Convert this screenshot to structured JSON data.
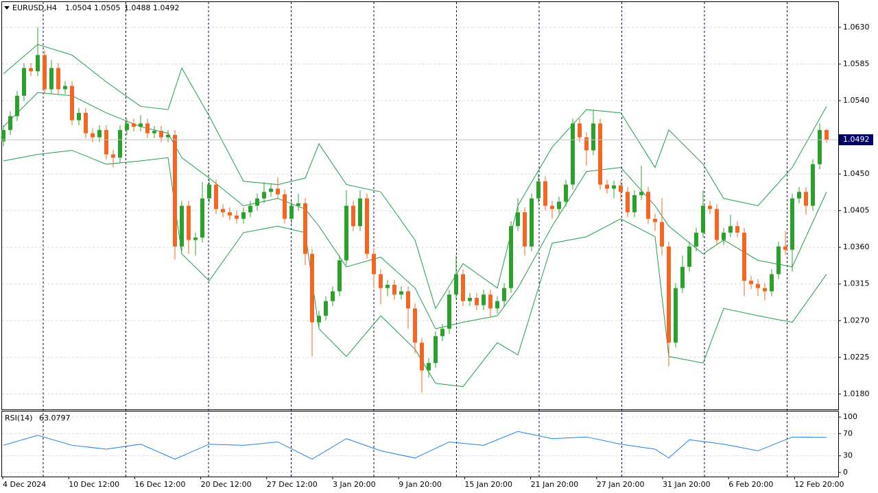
{
  "chart_data": {
    "type": "candlestick",
    "title": "EURUSD,H4",
    "up_color": "#2ca02c",
    "down_color": "#f26522",
    "grid": true,
    "ylim": [
      1.0161,
      1.0661
    ],
    "yticks": [
      {
        "value": 1.018,
        "label": "1.0180"
      },
      1.0225,
      {
        "value": 1.027,
        "label": "1.0270"
      },
      1.0315,
      {
        "value": 1.036,
        "label": "1.0360"
      },
      1.0405,
      {
        "value": 1.045,
        "label": "1.0450"
      },
      {
        "value": 1.054,
        "label": "1.0540"
      },
      1.0585,
      {
        "value": 1.063,
        "label": "1.0630"
      }
    ],
    "xlabels": [
      "4 Dec 2024",
      "10 Dec 12:00",
      "16 Dec 12:00",
      "20 Dec 12:00",
      "27 Dec 12:00",
      "3 Jan 20:00",
      "9 Jan 20:00",
      "15 Jan 20:00",
      "21 Jan 20:00",
      "27 Jan 20:00",
      "31 Jan 20:00",
      "6 Feb 20:00",
      "12 Feb 20:00"
    ],
    "candles": [
      [
        1.049,
        1.051,
        1.0484,
        1.0504
      ],
      [
        1.0504,
        1.0527,
        1.0498,
        1.0521
      ],
      [
        1.0521,
        1.0552,
        1.0515,
        1.0546
      ],
      [
        1.0546,
        1.0586,
        1.054,
        1.058
      ],
      [
        1.058,
        1.0586,
        1.057,
        1.0576
      ],
      [
        1.0576,
        1.063,
        1.057,
        1.0596
      ],
      [
        1.0596,
        1.0602,
        1.0548,
        1.0554
      ],
      [
        1.0554,
        1.059,
        1.0548,
        1.058
      ],
      [
        1.058,
        1.0586,
        1.0548,
        1.0554
      ],
      [
        1.0554,
        1.0564,
        1.0548,
        1.0558
      ],
      [
        1.0558,
        1.0564,
        1.051,
        1.0516
      ],
      [
        1.0516,
        1.0531,
        1.051,
        1.0525
      ],
      [
        1.0525,
        1.0531,
        1.0494,
        1.05
      ],
      [
        1.05,
        1.0506,
        1.0489,
        1.0495
      ],
      [
        1.0495,
        1.051,
        1.0489,
        1.0504
      ],
      [
        1.0504,
        1.051,
        1.0468,
        1.0474
      ],
      [
        1.0474,
        1.048,
        1.0458,
        1.047
      ],
      [
        1.047,
        1.051,
        1.0464,
        1.0504
      ],
      [
        1.0504,
        1.0518,
        1.0498,
        1.0512
      ],
      [
        1.0512,
        1.0518,
        1.0502,
        1.0508
      ],
      [
        1.0508,
        1.0522,
        1.0502,
        1.0512
      ],
      [
        1.0512,
        1.0518,
        1.0494,
        1.05
      ],
      [
        1.05,
        1.0509,
        1.0494,
        1.0503
      ],
      [
        1.0503,
        1.0509,
        1.0489,
        1.0495
      ],
      [
        1.0495,
        1.0504,
        1.0489,
        1.0498
      ],
      [
        1.0498,
        1.0504,
        1.0345,
        1.0361
      ],
      [
        1.0361,
        1.0417,
        1.0355,
        1.0411
      ],
      [
        1.0411,
        1.0417,
        1.0352,
        1.0369
      ],
      [
        1.0369,
        1.0378,
        1.035,
        1.0372
      ],
      [
        1.0372,
        1.044,
        1.0366,
        1.042
      ],
      [
        1.042,
        1.0443,
        1.0414,
        1.0437
      ],
      [
        1.0437,
        1.0443,
        1.0401,
        1.0407
      ],
      [
        1.0407,
        1.0413,
        1.0397,
        1.0403
      ],
      [
        1.0403,
        1.0409,
        1.0393,
        1.0399
      ],
      [
        1.0399,
        1.0405,
        1.0389,
        1.0395
      ],
      [
        1.0395,
        1.0409,
        1.0389,
        1.0403
      ],
      [
        1.0403,
        1.0417,
        1.0397,
        1.0411
      ],
      [
        1.0411,
        1.0426,
        1.0405,
        1.042
      ],
      [
        1.042,
        1.044,
        1.0414,
        1.0428
      ],
      [
        1.0428,
        1.0438,
        1.0422,
        1.0432
      ],
      [
        1.0432,
        1.0446,
        1.0419,
        1.0425
      ],
      [
        1.0425,
        1.0431,
        1.0389,
        1.0395
      ],
      [
        1.0395,
        1.0417,
        1.0389,
        1.0411
      ],
      [
        1.0411,
        1.0426,
        1.0405,
        1.0414
      ],
      [
        1.0414,
        1.042,
        1.0338,
        1.0352
      ],
      [
        1.0352,
        1.0358,
        1.0226,
        1.0268
      ],
      [
        1.0268,
        1.0282,
        1.0262,
        1.0276
      ],
      [
        1.0276,
        1.03,
        1.027,
        1.0294
      ],
      [
        1.0294,
        1.0312,
        1.0288,
        1.0306
      ],
      [
        1.0306,
        1.035,
        1.03,
        1.0344
      ],
      [
        1.0344,
        1.043,
        1.0338,
        1.0411
      ],
      [
        1.0411,
        1.0417,
        1.038,
        1.0386
      ],
      [
        1.0386,
        1.043,
        1.038,
        1.042
      ],
      [
        1.042,
        1.0426,
        1.0346,
        1.0352
      ],
      [
        1.0352,
        1.0358,
        1.031,
        1.0327
      ],
      [
        1.0327,
        1.0333,
        1.029,
        1.031
      ],
      [
        1.031,
        1.032,
        1.03,
        1.0314
      ],
      [
        1.0314,
        1.032,
        1.0296,
        1.0302
      ],
      [
        1.0302,
        1.0312,
        1.0296,
        1.0306
      ],
      [
        1.0306,
        1.0312,
        1.026,
        1.0285
      ],
      [
        1.0285,
        1.0291,
        1.023,
        1.0243
      ],
      [
        1.0243,
        1.0249,
        1.0182,
        1.0209
      ],
      [
        1.0209,
        1.0224,
        1.02,
        1.0218
      ],
      [
        1.0218,
        1.0257,
        1.0212,
        1.0251
      ],
      [
        1.0251,
        1.0266,
        1.0245,
        1.026
      ],
      [
        1.026,
        1.0308,
        1.0254,
        1.0302
      ],
      [
        1.0302,
        1.035,
        1.0296,
        1.0327
      ],
      [
        1.0327,
        1.0333,
        1.0288,
        1.0294
      ],
      [
        1.0294,
        1.0304,
        1.0288,
        1.0298
      ],
      [
        1.0298,
        1.0304,
        1.0283,
        1.0289
      ],
      [
        1.0289,
        1.0308,
        1.0283,
        1.0302
      ],
      [
        1.0302,
        1.0308,
        1.0275,
        1.0285
      ],
      [
        1.0285,
        1.03,
        1.0279,
        1.0294
      ],
      [
        1.0294,
        1.0316,
        1.0288,
        1.031
      ],
      [
        1.031,
        1.0392,
        1.0304,
        1.0386
      ],
      [
        1.0386,
        1.042,
        1.038,
        1.0403
      ],
      [
        1.0403,
        1.0409,
        1.035,
        1.0361
      ],
      [
        1.0361,
        1.0426,
        1.0355,
        1.042
      ],
      [
        1.042,
        1.045,
        1.0414,
        1.0441
      ],
      [
        1.0441,
        1.0447,
        1.0405,
        1.0411
      ],
      [
        1.0411,
        1.0417,
        1.0395,
        1.0407
      ],
      [
        1.0407,
        1.0422,
        1.0401,
        1.0416
      ],
      [
        1.0416,
        1.0443,
        1.041,
        1.0437
      ],
      [
        1.0437,
        1.0518,
        1.0431,
        1.0512
      ],
      [
        1.0512,
        1.0518,
        1.0489,
        1.0495
      ],
      [
        1.0495,
        1.0501,
        1.046,
        1.0479
      ],
      [
        1.0479,
        1.0528,
        1.0473,
        1.0512
      ],
      [
        1.0512,
        1.0518,
        1.0431,
        1.0437
      ],
      [
        1.0437,
        1.0443,
        1.0426,
        1.0432
      ],
      [
        1.0432,
        1.0442,
        1.042,
        1.0436
      ],
      [
        1.0436,
        1.0442,
        1.0416,
        1.0428
      ],
      [
        1.0428,
        1.0434,
        1.0397,
        1.0403
      ],
      [
        1.0403,
        1.043,
        1.0397,
        1.0424
      ],
      [
        1.0424,
        1.046,
        1.0418,
        1.0428
      ],
      [
        1.0428,
        1.0434,
        1.0389,
        1.0395
      ],
      [
        1.0395,
        1.0401,
        1.038,
        1.0391
      ],
      [
        1.0391,
        1.042,
        1.035,
        1.0361
      ],
      [
        1.0361,
        1.0367,
        1.0214,
        1.0243
      ],
      [
        1.0243,
        1.0316,
        1.0237,
        1.031
      ],
      [
        1.031,
        1.035,
        1.0304,
        1.0336
      ],
      [
        1.0336,
        1.0367,
        1.033,
        1.0361
      ],
      [
        1.0361,
        1.0384,
        1.0355,
        1.0378
      ],
      [
        1.0378,
        1.043,
        1.0372,
        1.0411
      ],
      [
        1.0411,
        1.0417,
        1.0401,
        1.0407
      ],
      [
        1.0407,
        1.0413,
        1.0363,
        1.0369
      ],
      [
        1.0369,
        1.0384,
        1.0363,
        1.0378
      ],
      [
        1.0378,
        1.04,
        1.0372,
        1.0386
      ],
      [
        1.0386,
        1.0392,
        1.0372,
        1.0378
      ],
      [
        1.0378,
        1.0384,
        1.03,
        1.0319
      ],
      [
        1.0319,
        1.0325,
        1.0309,
        1.0315
      ],
      [
        1.0315,
        1.0321,
        1.03,
        1.031
      ],
      [
        1.031,
        1.0316,
        1.0295,
        1.0306
      ],
      [
        1.0306,
        1.0333,
        1.03,
        1.0327
      ],
      [
        1.0327,
        1.0367,
        1.0321,
        1.0361
      ],
      [
        1.0361,
        1.038,
        1.0351,
        1.0357
      ],
      [
        1.0357,
        1.0426,
        1.033,
        1.042
      ],
      [
        1.042,
        1.0434,
        1.0414,
        1.0428
      ],
      [
        1.0428,
        1.0434,
        1.04,
        1.0411
      ],
      [
        1.0411,
        1.0468,
        1.0405,
        1.0462
      ],
      [
        1.0462,
        1.0512,
        1.0456,
        1.0504
      ],
      [
        1.0504,
        1.0505,
        1.0488,
        1.0492
      ]
    ],
    "bands": {
      "color": "#1e9e4a",
      "x": [
        0,
        5,
        10,
        15,
        20,
        24,
        26,
        30,
        35,
        40,
        44,
        46,
        50,
        55,
        60,
        63,
        67,
        72,
        75,
        80,
        85,
        90,
        95,
        97,
        102,
        105,
        110,
        115,
        120
      ],
      "upper": [
        1.0573,
        1.0609,
        1.0596,
        1.0563,
        1.0533,
        1.0529,
        1.058,
        1.0521,
        1.0441,
        1.0437,
        1.0445,
        1.0487,
        1.0437,
        1.0428,
        1.0369,
        1.0285,
        1.034,
        1.031,
        1.0411,
        1.0483,
        1.0529,
        1.0525,
        1.0458,
        1.0504,
        1.0462,
        1.042,
        1.0411,
        1.0458,
        1.0533
      ],
      "middle": [
        1.0508,
        1.055,
        1.0546,
        1.0525,
        1.0508,
        1.05,
        1.047,
        1.0445,
        1.0411,
        1.042,
        1.0407,
        1.0386,
        1.0336,
        1.0348,
        1.031,
        1.026,
        1.0268,
        1.0276,
        1.031,
        1.0386,
        1.0453,
        1.0458,
        1.0411,
        1.0386,
        1.0352,
        1.0369,
        1.0344,
        1.0336,
        1.0428
      ],
      "lower": [
        1.0466,
        1.0474,
        1.0479,
        1.0462,
        1.0466,
        1.047,
        1.0352,
        1.0319,
        1.0378,
        1.0386,
        1.0378,
        1.026,
        1.0226,
        1.0276,
        1.0235,
        1.0193,
        1.0189,
        1.0243,
        1.0228,
        1.0365,
        1.0373,
        1.0395,
        1.0373,
        1.0226,
        1.0218,
        1.0285,
        1.0276,
        1.0268,
        1.0327
      ]
    },
    "rsi": {
      "name": "RSI(14)",
      "color": "#1e7fe0",
      "x": [
        0,
        5,
        10,
        15,
        20,
        25,
        30,
        35,
        40,
        45,
        50,
        55,
        60,
        65,
        70,
        75,
        80,
        85,
        90,
        95,
        97,
        100,
        105,
        110,
        115,
        120
      ],
      "values": [
        49,
        67,
        49,
        42,
        51,
        24,
        51,
        49,
        55,
        24,
        61,
        39,
        26,
        55,
        49,
        74,
        61,
        64,
        51,
        42,
        26,
        59,
        51,
        39,
        64,
        63.0797
      ],
      "ylim": [
        -7.5,
        110
      ],
      "yticks": [
        0,
        30,
        70,
        100
      ]
    }
  }
}
